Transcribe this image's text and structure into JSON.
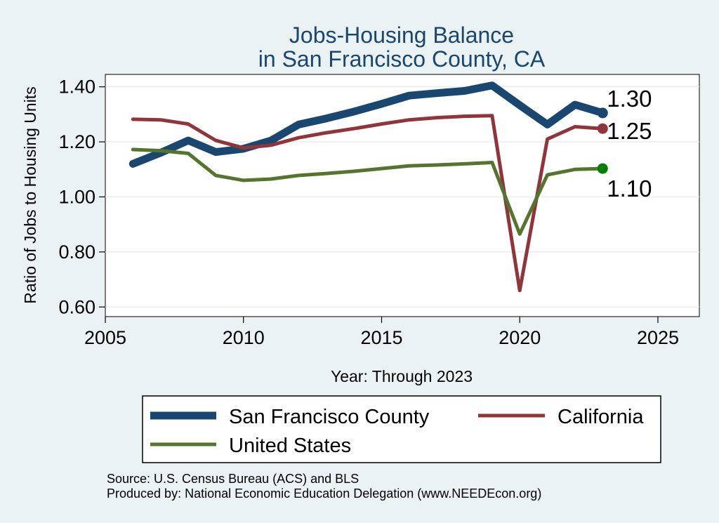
{
  "chart_data": {
    "type": "line",
    "title": "Jobs-Housing Balance",
    "subtitle": "in San Francisco County, CA",
    "xlabel": "Year: Through 2023",
    "ylabel": "Ratio of Jobs to Housing Units",
    "xlim": [
      2005,
      2026.5
    ],
    "ylim": [
      0.565,
      1.445
    ],
    "xticks": [
      2005,
      2010,
      2015,
      2020,
      2025
    ],
    "yticks": [
      0.6,
      0.8,
      1.0,
      1.2,
      1.4
    ],
    "ytick_labels": [
      "0.60",
      "0.80",
      "1.00",
      "1.20",
      "1.40"
    ],
    "grid": true,
    "legend_position": "bottom",
    "series": [
      {
        "name": "San Francisco County",
        "color": "#1A476F",
        "x": [
          2006,
          2007,
          2008,
          2009,
          2010,
          2011,
          2012,
          2013,
          2014,
          2015,
          2016,
          2017,
          2018,
          2019,
          2020,
          2021,
          2022,
          2023
        ],
        "values": [
          1.12,
          1.16,
          1.205,
          1.163,
          1.175,
          1.205,
          1.263,
          1.285,
          1.31,
          1.338,
          1.368,
          1.377,
          1.385,
          1.405,
          1.333,
          1.263,
          1.335,
          1.305
        ],
        "end_label": "1.30"
      },
      {
        "name": "California",
        "color": "#90353B",
        "x": [
          2006,
          2007,
          2008,
          2009,
          2010,
          2011,
          2012,
          2013,
          2014,
          2015,
          2016,
          2017,
          2018,
          2019,
          2020,
          2021,
          2022,
          2023
        ],
        "values": [
          1.282,
          1.28,
          1.265,
          1.205,
          1.178,
          1.188,
          1.215,
          1.233,
          1.248,
          1.265,
          1.28,
          1.288,
          1.293,
          1.295,
          0.66,
          1.21,
          1.255,
          1.248
        ],
        "end_label": "1.25"
      },
      {
        "name": "United States",
        "color": "#55752F",
        "x": [
          2006,
          2007,
          2008,
          2009,
          2010,
          2011,
          2012,
          2013,
          2014,
          2015,
          2016,
          2017,
          2018,
          2019,
          2020,
          2021,
          2022,
          2023
        ],
        "values": [
          1.172,
          1.168,
          1.158,
          1.078,
          1.06,
          1.065,
          1.078,
          1.085,
          1.093,
          1.103,
          1.113,
          1.116,
          1.12,
          1.125,
          0.865,
          1.08,
          1.1,
          1.103
        ],
        "end_label": "1.10",
        "end_marker_color": "#008000"
      }
    ],
    "source_note": "Source: U.S. Census Bureau (ACS) and BLS",
    "producer_note": "Produced by: National Economic Education Delegation (www.NEEDEcon.org)"
  }
}
